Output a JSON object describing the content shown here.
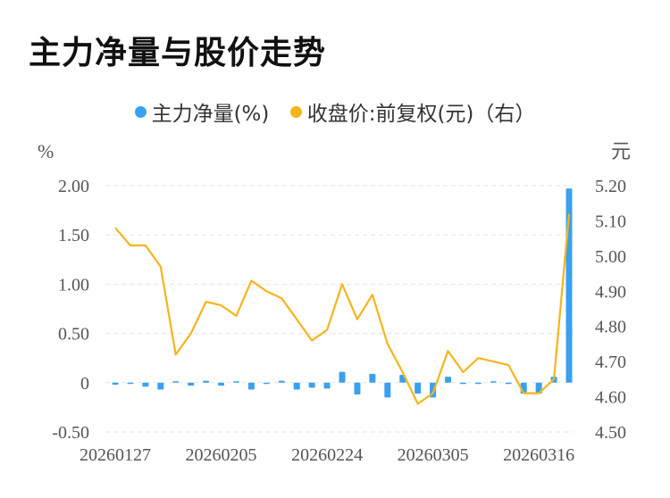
{
  "title": "主力净量与股价走势",
  "legend": {
    "series1": "主力净量(%)",
    "series2": "收盘价:前复权(元)（右）"
  },
  "colors": {
    "bar": "#3aa0ef",
    "line": "#f5b51b",
    "grid": "#e2e2e2",
    "text": "#555555"
  },
  "chart_data": {
    "type": "bar+line",
    "title": "主力净量与股价走势",
    "y_left_unit": "%",
    "y_right_unit": "元",
    "y_left_ticks": [
      "2.00",
      "1.50",
      "1.00",
      "0.50",
      "0",
      "-0.50"
    ],
    "y_right_ticks": [
      "5.20",
      "5.10",
      "5.00",
      "4.90",
      "4.80",
      "4.70",
      "4.60",
      "4.50"
    ],
    "y_left_range": [
      -0.5,
      2.0
    ],
    "y_right_range": [
      4.5,
      5.2
    ],
    "x_tick_labels": [
      "20260127",
      "20260205",
      "20260224",
      "20260305",
      "20260316"
    ],
    "x_tick_indices": [
      0,
      7,
      14,
      21,
      28
    ],
    "dates": [
      "20260127",
      "20260128",
      "20260129",
      "20260130",
      "20260202",
      "20260203",
      "20260204",
      "20260205",
      "20260206",
      "20260209",
      "20260210",
      "20260211",
      "20260212",
      "20260213",
      "20260224",
      "20260225",
      "20260226",
      "20260227",
      "20260302",
      "20260303",
      "20260304",
      "20260305",
      "20260306",
      "20260309",
      "20260310",
      "20260311",
      "20260312",
      "20260313",
      "20260316",
      "20260317",
      "20260318"
    ],
    "series": [
      {
        "name": "主力净量(%)",
        "type": "bar",
        "axis": "left",
        "values": [
          -0.02,
          -0.01,
          -0.04,
          -0.07,
          0.01,
          -0.03,
          0.02,
          -0.03,
          0.0,
          -0.07,
          -0.01,
          0.02,
          -0.07,
          -0.05,
          -0.06,
          0.11,
          -0.12,
          0.09,
          -0.15,
          0.08,
          -0.11,
          -0.15,
          0.06,
          -0.01,
          -0.01,
          0.0,
          -0.01,
          -0.11,
          -0.11,
          0.06,
          1.97
        ]
      },
      {
        "name": "收盘价:前复权(元)（右）",
        "type": "line",
        "axis": "right",
        "values": [
          5.08,
          5.03,
          5.03,
          4.97,
          4.72,
          4.78,
          4.87,
          4.86,
          4.83,
          4.93,
          4.9,
          4.88,
          4.82,
          4.76,
          4.79,
          4.92,
          4.82,
          4.89,
          4.75,
          4.67,
          4.58,
          4.61,
          4.73,
          4.67,
          4.71,
          4.7,
          4.69,
          4.61,
          4.61,
          4.65,
          5.12
        ]
      }
    ]
  }
}
